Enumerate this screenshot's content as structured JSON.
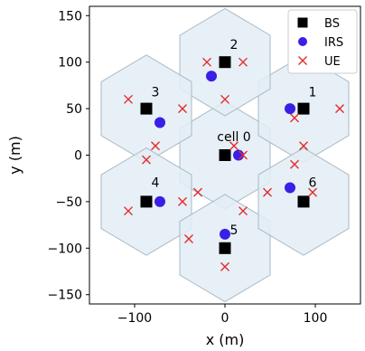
{
  "chart_data": {
    "type": "scatter",
    "xlabel": "x (m)",
    "ylabel": "y (m)",
    "xlim": [
      -150,
      150
    ],
    "ylim": [
      -160,
      160
    ],
    "xticks": [
      -100,
      0,
      100
    ],
    "xtick_labels": [
      "−100",
      "0",
      "100"
    ],
    "yticks": [
      -150,
      -100,
      -50,
      0,
      50,
      100,
      150
    ],
    "ytick_labels": [
      "−150",
      "−100",
      "−50",
      "0",
      "50",
      "100",
      "150"
    ],
    "grid": false,
    "legend_position": "top-right",
    "hex_circumradius": 57.7,
    "cells": [
      {
        "label": "cell 0",
        "center": [
          0,
          0
        ],
        "label_pos": [
          10,
          20
        ]
      },
      {
        "label": "1",
        "center": [
          87,
          50
        ],
        "label_pos": [
          97,
          68
        ]
      },
      {
        "label": "2",
        "center": [
          0,
          100
        ],
        "label_pos": [
          10,
          119
        ]
      },
      {
        "label": "3",
        "center": [
          -87,
          50
        ],
        "label_pos": [
          -77,
          68
        ]
      },
      {
        "label": "4",
        "center": [
          -87,
          -50
        ],
        "label_pos": [
          -77,
          -29
        ]
      },
      {
        "label": "5",
        "center": [
          0,
          -100
        ],
        "label_pos": [
          10,
          -80
        ]
      },
      {
        "label": "6",
        "center": [
          87,
          -50
        ],
        "label_pos": [
          97,
          -29
        ]
      }
    ],
    "series": [
      {
        "name": "BS",
        "marker": "square",
        "color": "#000000",
        "points": [
          [
            0,
            0
          ],
          [
            87,
            50
          ],
          [
            0,
            100
          ],
          [
            -87,
            50
          ],
          [
            -87,
            -50
          ],
          [
            0,
            -100
          ],
          [
            87,
            -50
          ]
        ]
      },
      {
        "name": "IRS",
        "marker": "circle",
        "color": "#3a1fe6",
        "points": [
          [
            15,
            0
          ],
          [
            72,
            50
          ],
          [
            -15,
            85
          ],
          [
            -72,
            35
          ],
          [
            -72,
            -50
          ],
          [
            0,
            -85
          ],
          [
            72,
            -35
          ]
        ]
      },
      {
        "name": "UE",
        "marker": "x",
        "color": "#e32b2b",
        "points": [
          [
            10,
            10
          ],
          [
            20,
            0
          ],
          [
            77,
            40
          ],
          [
            87,
            10
          ],
          [
            127,
            50
          ],
          [
            -20,
            100
          ],
          [
            20,
            100
          ],
          [
            0,
            60
          ],
          [
            -107,
            60
          ],
          [
            -47,
            50
          ],
          [
            -77,
            10
          ],
          [
            -87,
            -5
          ],
          [
            -47,
            -50
          ],
          [
            -107,
            -60
          ],
          [
            -30,
            -40
          ],
          [
            20,
            -60
          ],
          [
            -40,
            -90
          ],
          [
            0,
            -120
          ],
          [
            47,
            -40
          ],
          [
            77,
            -10
          ],
          [
            97,
            -40
          ]
        ]
      }
    ]
  }
}
